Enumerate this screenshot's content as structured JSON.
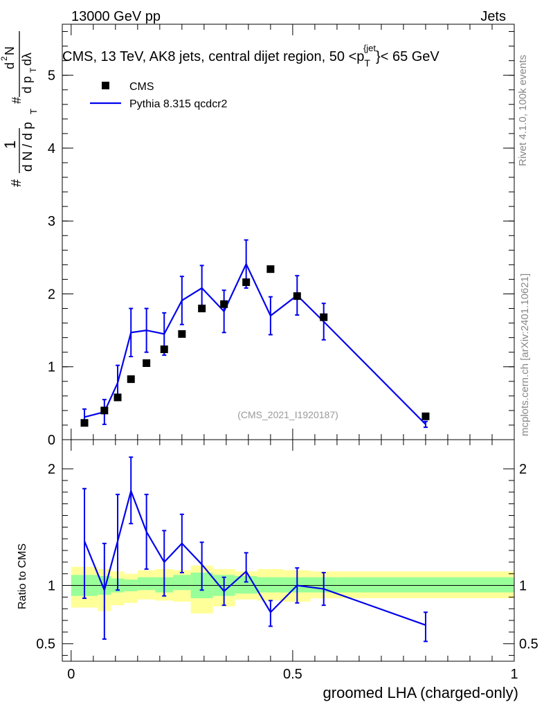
{
  "header": {
    "left": "13000 GeV pp",
    "right": "Jets"
  },
  "side": {
    "rivet": "Rivet 4.1.0,  100k events",
    "mcplots": "mcplots.cern.ch [arXiv:2401.10621]"
  },
  "colors": {
    "mc": "#0000ee",
    "data": "#000000",
    "band_inner": "#99ff99",
    "band_outer": "#ffff99"
  },
  "chart_data": {
    "type": "scatter",
    "title_parts": {
      "pre": "CMS, 13 TeV, AK8 jets, central dijet region, 50 <p",
      "sub": "T",
      "sup": "{jet",
      "post": "}< 65 GeV"
    },
    "analysis_tag": "(CMS_2021_I1920187)",
    "ylabel_parts": {
      "hash1": "#",
      "one": "1",
      "frac1": "d N / d p",
      "frac1_sub": "T",
      "hash2": "#",
      "frac2_num": "d",
      "frac2_sup": "2",
      "frac2_num2": "N",
      "frac2_den": "d p",
      "frac2_den_sub": "T",
      "frac2_den2": " dλ"
    },
    "xlabel": "groomed LHA (charged-only)",
    "ratio_ylabel": "Ratio to CMS",
    "legend": [
      {
        "label": "CMS",
        "kind": "marker"
      },
      {
        "label": "Pythia 8.315 qcdcr2",
        "kind": "line"
      }
    ],
    "xlim": [
      -0.02,
      1.0
    ],
    "ylim_main": [
      0,
      5.7
    ],
    "ylim_ratio": [
      0.35,
      2.25
    ],
    "x_ticks": [
      {
        "v": 0,
        "label": "0"
      },
      {
        "v": 0.5,
        "label": "0.5"
      },
      {
        "v": 1,
        "label": "1"
      }
    ],
    "y_ticks_main": [
      {
        "v": 0,
        "label": "0"
      },
      {
        "v": 1,
        "label": "1"
      },
      {
        "v": 2,
        "label": "2"
      },
      {
        "v": 3,
        "label": "3"
      },
      {
        "v": 4,
        "label": "4"
      },
      {
        "v": 5,
        "label": "5"
      }
    ],
    "y_ticks_ratio": [
      {
        "v": 0.5,
        "label": "0.5"
      },
      {
        "v": 1,
        "label": "1"
      },
      {
        "v": 2,
        "label": "2"
      }
    ],
    "bin_edges": [
      0,
      0.06,
      0.09,
      0.12,
      0.15,
      0.19,
      0.23,
      0.27,
      0.32,
      0.37,
      0.42,
      0.48,
      0.54,
      0.6,
      1.0
    ],
    "cms": {
      "x": [
        0.03,
        0.075,
        0.105,
        0.135,
        0.17,
        0.21,
        0.25,
        0.295,
        0.345,
        0.395,
        0.45,
        0.51,
        0.57,
        0.8
      ],
      "y": [
        0.23,
        0.4,
        0.58,
        0.83,
        1.05,
        1.24,
        1.45,
        1.8,
        1.86,
        2.16,
        2.34,
        1.97,
        1.68,
        0.32
      ]
    },
    "pythia": {
      "x": [
        0.03,
        0.075,
        0.105,
        0.135,
        0.17,
        0.21,
        0.25,
        0.295,
        0.345,
        0.395,
        0.45,
        0.51,
        0.57,
        0.8
      ],
      "y": [
        0.31,
        0.38,
        0.78,
        1.47,
        1.5,
        1.45,
        1.91,
        2.08,
        1.76,
        2.41,
        1.7,
        1.98,
        1.62,
        0.21
      ],
      "err": [
        0.11,
        0.17,
        0.24,
        0.33,
        0.3,
        0.29,
        0.33,
        0.31,
        0.29,
        0.33,
        0.26,
        0.27,
        0.25,
        0.04
      ]
    },
    "ratio": {
      "y": [
        1.38,
        0.96,
        1.38,
        1.81,
        1.46,
        1.2,
        1.36,
        1.18,
        0.95,
        1.12,
        0.77,
        1.0,
        0.97,
        0.66
      ],
      "err_lo": [
        0.49,
        0.42,
        0.42,
        0.28,
        0.32,
        0.29,
        0.25,
        0.22,
        0.12,
        0.09,
        0.12,
        0.15,
        0.14,
        0.14
      ],
      "err_hi": [
        0.45,
        0.4,
        0.4,
        0.29,
        0.32,
        0.27,
        0.25,
        0.19,
        0.12,
        0.16,
        0.1,
        0.15,
        0.14,
        0.11
      ]
    },
    "band_inner": {
      "lo": [
        0.91,
        0.92,
        0.94,
        0.95,
        0.96,
        0.94,
        0.96,
        0.89,
        0.91,
        0.93,
        0.94,
        0.94,
        0.94,
        0.94
      ],
      "hi": [
        1.09,
        1.08,
        1.06,
        1.05,
        1.07,
        1.07,
        1.09,
        1.11,
        1.09,
        1.08,
        1.07,
        1.07,
        1.07,
        1.07
      ]
    },
    "band_outer": {
      "lo": [
        0.81,
        0.78,
        0.83,
        0.85,
        0.88,
        0.87,
        0.86,
        0.76,
        0.82,
        0.88,
        0.87,
        0.86,
        0.89,
        0.89
      ],
      "hi": [
        1.16,
        1.14,
        1.12,
        1.1,
        1.13,
        1.14,
        1.13,
        1.17,
        1.14,
        1.12,
        1.14,
        1.13,
        1.12,
        1.12
      ]
    }
  }
}
